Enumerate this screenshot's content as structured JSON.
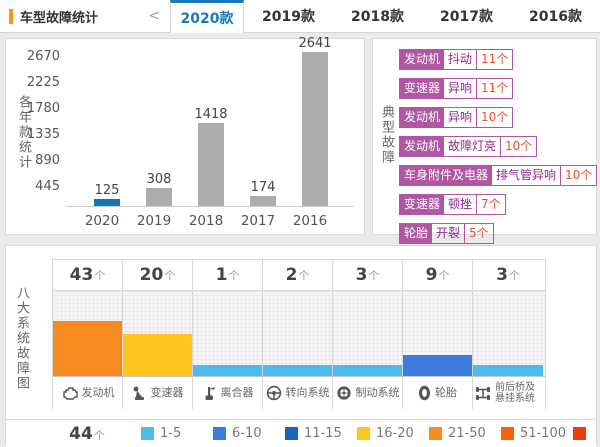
{
  "header": {
    "title": "车型故障统计",
    "collapse_chevron": "<",
    "tabs": [
      {
        "label": "2020款",
        "active": true
      },
      {
        "label": "2019款",
        "active": false
      },
      {
        "label": "2018款",
        "active": false
      },
      {
        "label": "2017款",
        "active": false
      },
      {
        "label": "2016款",
        "active": false
      }
    ]
  },
  "chart_data": [
    {
      "type": "bar",
      "title": "各年款统计",
      "categories": [
        "2020",
        "2019",
        "2018",
        "2017",
        "2016"
      ],
      "values": [
        125,
        308,
        1418,
        174,
        2641
      ],
      "yticks": [
        445,
        890,
        1335,
        1780,
        2225,
        2670
      ],
      "ylim": [
        0,
        3115
      ],
      "selected_index": 0,
      "selected_color": "#1273B4",
      "default_color": "#ACACAC",
      "legend_position": "none",
      "grid": false
    },
    {
      "type": "bar",
      "title": "八大系统故障图",
      "unit": "个",
      "columns": [
        {
          "label": "发动机",
          "value": 43,
          "icon": "engine-icon"
        },
        {
          "label": "变速器",
          "value": 20,
          "icon": "gearshift-icon"
        },
        {
          "label": "离合器",
          "value": 1,
          "icon": "clutch-icon"
        },
        {
          "label": "转向系统",
          "value": 2,
          "icon": "steering-wheel-icon"
        },
        {
          "label": "制动系统",
          "value": 3,
          "icon": "brake-disc-icon"
        },
        {
          "label": "轮胎",
          "value": 9,
          "icon": "tire-icon"
        },
        {
          "label": "前后桥及悬挂系统",
          "value": 3,
          "icon": "axle-suspension-icon"
        }
      ],
      "next_row_count": "44",
      "legend": [
        {
          "label": "1-5",
          "color": "#4CBBEC"
        },
        {
          "label": "6-10",
          "color": "#3C7CDC"
        },
        {
          "label": "11-15",
          "color": "#1668B8"
        },
        {
          "label": "16-20",
          "color": "#FFC41E"
        },
        {
          "label": "21-50",
          "color": "#F68B1F"
        },
        {
          "label": "51-100",
          "color": "#F66407"
        },
        {
          "label": "",
          "color": "#E83C0D"
        }
      ],
      "grid": true
    }
  ],
  "typical_faults": {
    "title": "典型故障",
    "items": [
      {
        "system": "发动机",
        "symptom": "抖动",
        "count": "11个"
      },
      {
        "system": "变速器",
        "symptom": "异响",
        "count": "11个"
      },
      {
        "system": "发动机",
        "symptom": "异响",
        "count": "10个"
      },
      {
        "system": "发动机",
        "symptom": "故障灯亮",
        "count": "10个"
      },
      {
        "system": "车身附件及电器",
        "symptom": "排气管异响",
        "count": "10个"
      },
      {
        "system": "变速器",
        "symptom": "顿挫",
        "count": "7个"
      },
      {
        "system": "轮胎",
        "symptom": "开裂",
        "count": "5个"
      }
    ]
  }
}
